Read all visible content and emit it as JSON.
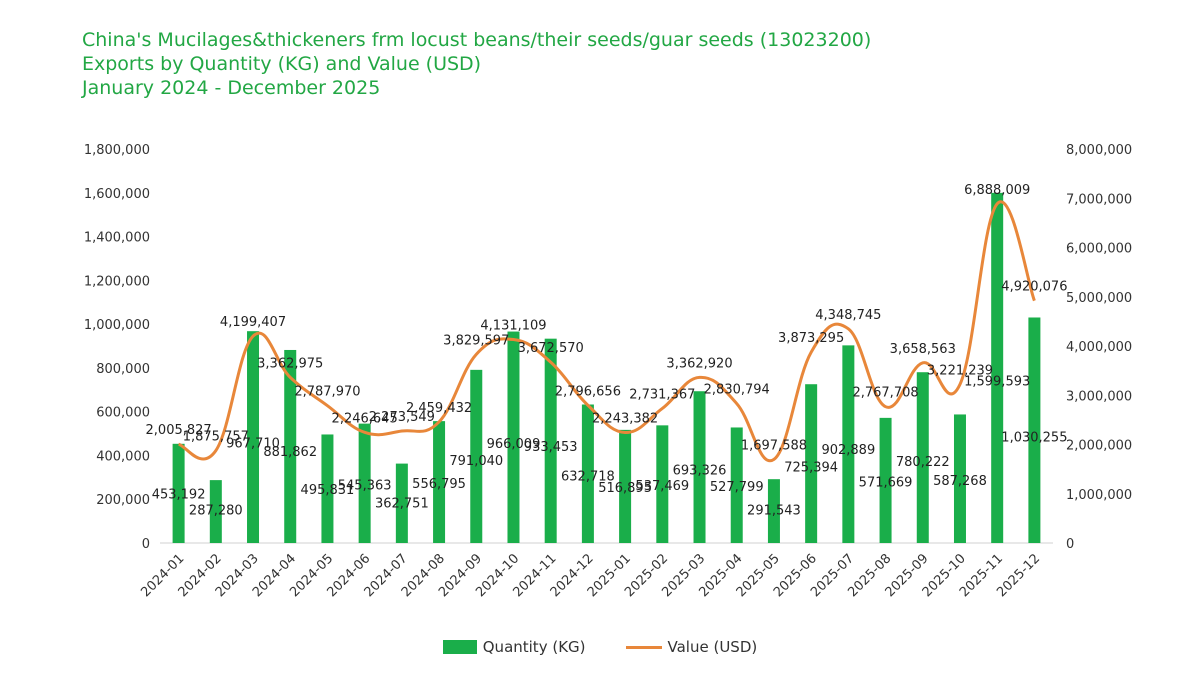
{
  "title": {
    "line1": "China's Mucilages&thickeners frm locust beans/their seeds/guar seeds (13023200)",
    "line2": "Exports by Quantity (KG) and Value (USD)",
    "line3": "January 2024 - December 2025"
  },
  "colors": {
    "title": "#22a744",
    "bars": "#1aae4a",
    "line": "#e8873a"
  },
  "legend": {
    "bar_label": "Quantity (KG)",
    "line_label": "Value (USD)",
    "position": "bottom"
  },
  "chart_data": {
    "type": "bar+line",
    "categories": [
      "2024-01",
      "2024-02",
      "2024-03",
      "2024-04",
      "2024-05",
      "2024-06",
      "2024-07",
      "2024-08",
      "2024-09",
      "2024-10",
      "2024-11",
      "2024-12",
      "2025-01",
      "2025-02",
      "2025-03",
      "2025-04",
      "2025-05",
      "2025-06",
      "2025-07",
      "2025-08",
      "2025-09",
      "2025-10",
      "2025-11",
      "2025-12"
    ],
    "series": [
      {
        "name": "Quantity (KG)",
        "type": "bar",
        "axis": "left",
        "values": [
          453192,
          287280,
          967710,
          881862,
          495831,
          545363,
          362751,
          556795,
          791040,
          966009,
          933453,
          632718,
          516895,
          537469,
          693326,
          527799,
          291543,
          725394,
          902889,
          571669,
          780222,
          587268,
          1599593,
          1030255
        ],
        "labels": [
          "453,192",
          "287,280",
          "967,710",
          "881,862",
          "495,831",
          "545,363",
          "362,751",
          "556,795",
          "791,040",
          "966,009",
          "933,453",
          "632,718",
          "516,895",
          "537,469",
          "693,326",
          "527,799",
          "291,543",
          "725,394",
          "902,889",
          "571,669",
          "780,222",
          "587,268",
          "1,599,593",
          "1,030,255"
        ]
      },
      {
        "name": "Value (USD)",
        "type": "line",
        "axis": "right",
        "values": [
          2005827,
          1875757,
          4199407,
          3362975,
          2787970,
          2246645,
          2273549,
          2459432,
          3829597,
          4131109,
          3672570,
          2796656,
          2243382,
          2731367,
          3362920,
          2830794,
          1697588,
          3873295,
          4348745,
          2767708,
          3658563,
          3221239,
          6888009,
          4920076
        ],
        "labels": [
          "2,005,827",
          "1,875,757",
          "4,199,407",
          "3,362,975",
          "2,787,970",
          "2,246,645",
          "2,273,549",
          "2,459,432",
          "3,829,597",
          "4,131,109",
          "3,672,570",
          "2,796,656",
          "2,243,382",
          "2,731,367",
          "3,362,920",
          "2,830,794",
          "1,697,588",
          "3,873,295",
          "4,348,745",
          "2,767,708",
          "3,658,563",
          "3,221,239",
          "6,888,009",
          "4,920,076"
        ]
      }
    ],
    "y_left": {
      "min": 0,
      "max": 1800000,
      "ticks": [
        "0",
        "200,000",
        "400,000",
        "600,000",
        "800,000",
        "1,000,000",
        "1,200,000",
        "1,400,000",
        "1,600,000",
        "1,800,000"
      ]
    },
    "y_right": {
      "min": 0,
      "max": 8000000,
      "ticks": [
        "0",
        "1,000,000",
        "2,000,000",
        "3,000,000",
        "4,000,000",
        "5,000,000",
        "6,000,000",
        "7,000,000",
        "8,000,000"
      ]
    },
    "grid": false
  }
}
